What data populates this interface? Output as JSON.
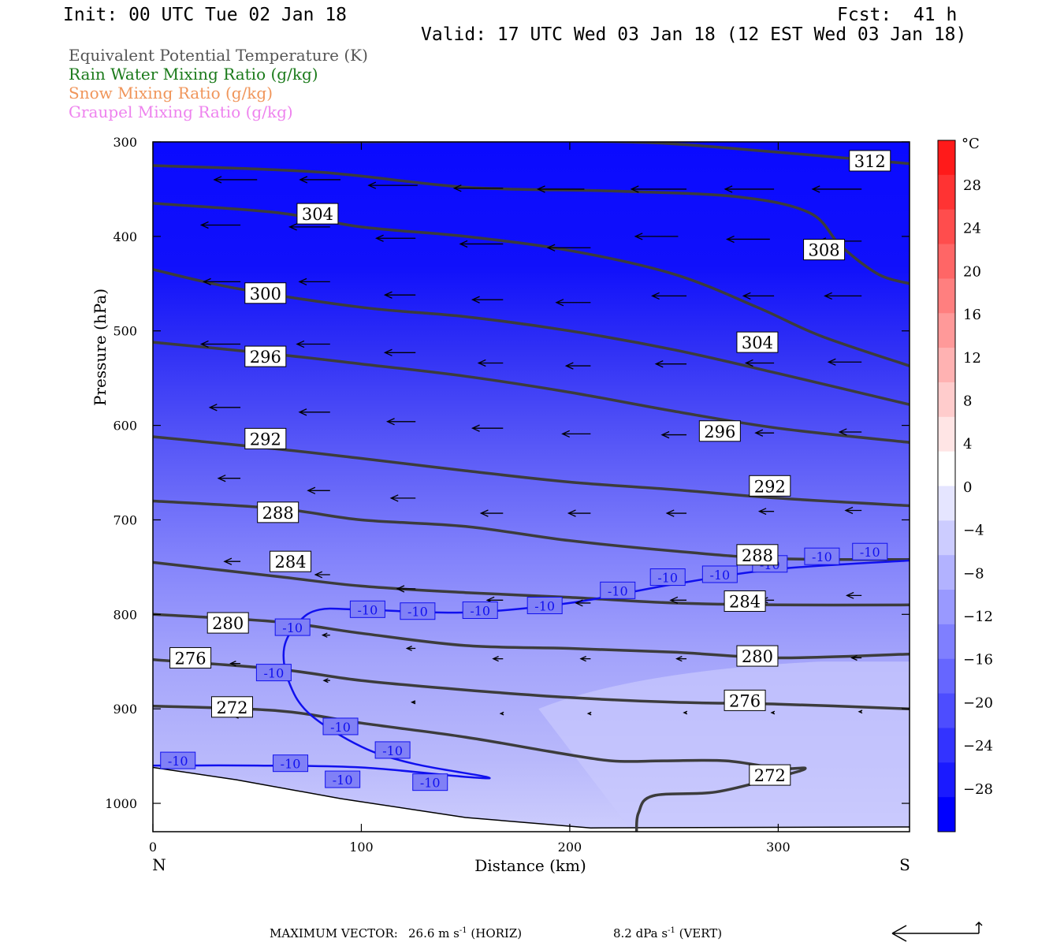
{
  "header": {
    "init": "Init: 00 UTC Tue 02 Jan 18",
    "fcst": "Fcst:  41 h",
    "valid": "Valid: 17 UTC Wed 03 Jan 18 (12 EST Wed 03 Jan 18)"
  },
  "legend": [
    {
      "text": "Equivalent Potential Temperature (K)",
      "color": "#555555"
    },
    {
      "text": "Rain Water Mixing Ratio (g/kg)",
      "color": "#1a7a1a"
    },
    {
      "text": "Snow Mixing Ratio (g/kg)",
      "color": "#f0955a"
    },
    {
      "text": "Graupel Mixing Ratio (g/kg)",
      "color": "#ee82ee"
    }
  ],
  "footer": {
    "label": "MAXIMUM VECTOR:",
    "horiz": "26.6 m s",
    "horiz_tag": "(HORIZ)",
    "vert": "8.2 dPa s",
    "vert_tag": "(VERT)",
    "unit_exp": "-1"
  },
  "chart_data": {
    "type": "contour",
    "xlabel": "Distance (km)",
    "ylabel": "Pressure (hPa)",
    "x_left_label": "N",
    "x_right_label": "S",
    "xlim": [
      0,
      363
    ],
    "ylim": [
      1030,
      300
    ],
    "x_ticks": [
      0,
      100,
      200,
      300
    ],
    "y_ticks": [
      300,
      400,
      500,
      600,
      700,
      800,
      900,
      1000
    ],
    "colorbar": {
      "unit": "°C",
      "labels": [
        28,
        24,
        20,
        16,
        12,
        8,
        4,
        0,
        -4,
        -8,
        -12,
        -16,
        -20,
        -24,
        -28
      ],
      "colors": [
        "#ff1a1a",
        "#ff3333",
        "#ff4d4d",
        "#ff6666",
        "#ff7f7f",
        "#ff9999",
        "#ffb2b2",
        "#ffcccc",
        "#ffe5e5",
        "#ffffff",
        "#e5e5ff",
        "#ccccff",
        "#b2b2ff",
        "#9999ff",
        "#7f7fff",
        "#6666ff",
        "#4d4dff",
        "#3333ff",
        "#1a1aff",
        "#0000ff"
      ]
    },
    "theta_e_contours": [
      {
        "value": 312,
        "points": [
          [
            85,
            300
          ],
          [
            175,
            299
          ],
          [
            228,
            300
          ],
          [
            268,
            305
          ],
          [
            363,
            323
          ]
        ]
      },
      {
        "value": 308,
        "points": [
          [
            0,
            325
          ],
          [
            80,
            332
          ],
          [
            150,
            348
          ],
          [
            220,
            352
          ],
          [
            280,
            358
          ],
          [
            315,
            375
          ],
          [
            330,
            410
          ],
          [
            348,
            440
          ],
          [
            363,
            450
          ]
        ]
      },
      {
        "value": 304,
        "points": [
          [
            0,
            365
          ],
          [
            60,
            375
          ],
          [
            100,
            390
          ],
          [
            150,
            400
          ],
          [
            200,
            415
          ],
          [
            250,
            440
          ],
          [
            290,
            475
          ],
          [
            320,
            505
          ],
          [
            363,
            537
          ]
        ]
      },
      {
        "value": 300,
        "points": [
          [
            0,
            435
          ],
          [
            40,
            455
          ],
          [
            100,
            475
          ],
          [
            150,
            485
          ],
          [
            200,
            500
          ],
          [
            250,
            520
          ],
          [
            300,
            545
          ],
          [
            363,
            578
          ]
        ]
      },
      {
        "value": 296,
        "points": [
          [
            0,
            512
          ],
          [
            60,
            525
          ],
          [
            100,
            535
          ],
          [
            150,
            548
          ],
          [
            200,
            565
          ],
          [
            250,
            585
          ],
          [
            300,
            603
          ],
          [
            363,
            618
          ]
        ]
      },
      {
        "value": 292,
        "points": [
          [
            0,
            612
          ],
          [
            60,
            625
          ],
          [
            100,
            635
          ],
          [
            150,
            648
          ],
          [
            200,
            660
          ],
          [
            250,
            668
          ],
          [
            300,
            677
          ],
          [
            363,
            685
          ]
        ]
      },
      {
        "value": 288,
        "points": [
          [
            0,
            680
          ],
          [
            60,
            688
          ],
          [
            100,
            700
          ],
          [
            150,
            707
          ],
          [
            200,
            722
          ],
          [
            250,
            733
          ],
          [
            300,
            741
          ],
          [
            363,
            742
          ]
        ]
      },
      {
        "value": 284,
        "points": [
          [
            0,
            745
          ],
          [
            60,
            760
          ],
          [
            100,
            770
          ],
          [
            150,
            777
          ],
          [
            200,
            782
          ],
          [
            250,
            788
          ],
          [
            300,
            790
          ],
          [
            363,
            790
          ]
        ]
      },
      {
        "value": 280,
        "points": [
          [
            0,
            800
          ],
          [
            60,
            808
          ],
          [
            100,
            820
          ],
          [
            150,
            833
          ],
          [
            200,
            836
          ],
          [
            250,
            840
          ],
          [
            300,
            846
          ],
          [
            363,
            842
          ]
        ]
      },
      {
        "value": 276,
        "points": [
          [
            0,
            848
          ],
          [
            60,
            858
          ],
          [
            100,
            870
          ],
          [
            150,
            880
          ],
          [
            200,
            888
          ],
          [
            250,
            893
          ],
          [
            300,
            895
          ],
          [
            363,
            900
          ]
        ]
      },
      {
        "value": 272,
        "points": [
          [
            0,
            897
          ],
          [
            60,
            902
          ],
          [
            100,
            915
          ],
          [
            150,
            930
          ],
          [
            190,
            945
          ],
          [
            220,
            955
          ],
          [
            245,
            955
          ],
          [
            275,
            955
          ],
          [
            300,
            963
          ],
          [
            313,
            963
          ],
          [
            300,
            972
          ],
          [
            270,
            988
          ],
          [
            240,
            992
          ],
          [
            233,
            1010
          ],
          [
            232,
            1030
          ]
        ]
      }
    ],
    "temp_minus10_contour": [
      [
        0,
        960
      ],
      [
        50,
        960
      ],
      [
        100,
        962
      ],
      [
        150,
        972
      ],
      [
        160,
        972
      ],
      [
        125,
        958
      ],
      [
        100,
        940
      ],
      [
        75,
        905
      ],
      [
        65,
        870
      ],
      [
        63,
        835
      ],
      [
        70,
        808
      ],
      [
        80,
        795
      ],
      [
        100,
        795
      ],
      [
        150,
        798
      ],
      [
        200,
        788
      ],
      [
        250,
        768
      ],
      [
        300,
        752
      ],
      [
        363,
        743
      ]
    ],
    "theta_e_labels": [
      {
        "value": 312,
        "x": 344,
        "p": 320
      },
      {
        "value": 304,
        "x": 79,
        "p": 376
      },
      {
        "value": 308,
        "x": 322,
        "p": 414
      },
      {
        "value": 300,
        "x": 54,
        "p": 460
      },
      {
        "value": 304,
        "x": 290,
        "p": 512
      },
      {
        "value": 296,
        "x": 54,
        "p": 527
      },
      {
        "value": 296,
        "x": 272,
        "p": 606
      },
      {
        "value": 292,
        "x": 54,
        "p": 614
      },
      {
        "value": 292,
        "x": 296,
        "p": 664
      },
      {
        "value": 288,
        "x": 60,
        "p": 692
      },
      {
        "value": 288,
        "x": 290,
        "p": 737
      },
      {
        "value": 284,
        "x": 66,
        "p": 744
      },
      {
        "value": 284,
        "x": 284,
        "p": 786
      },
      {
        "value": 280,
        "x": 36,
        "p": 809
      },
      {
        "value": 276,
        "x": 18,
        "p": 846
      },
      {
        "value": 280,
        "x": 290,
        "p": 844
      },
      {
        "value": 276,
        "x": 284,
        "p": 891
      },
      {
        "value": 272,
        "x": 38,
        "p": 898
      },
      {
        "value": 272,
        "x": 296,
        "p": 970
      }
    ],
    "minus10_labels": [
      {
        "value": "-10",
        "x": 12,
        "p": 955
      },
      {
        "value": "-10",
        "x": 67,
        "p": 814
      },
      {
        "value": "-10",
        "x": 58,
        "p": 862
      },
      {
        "value": "-10",
        "x": 103,
        "p": 795
      },
      {
        "value": "-10",
        "x": 127,
        "p": 797
      },
      {
        "value": "-10",
        "x": 157,
        "p": 796
      },
      {
        "value": "-10",
        "x": 188,
        "p": 791
      },
      {
        "value": "-10",
        "x": 223,
        "p": 775
      },
      {
        "value": "-10",
        "x": 247,
        "p": 761
      },
      {
        "value": "-10",
        "x": 272,
        "p": 758
      },
      {
        "value": "-10",
        "x": 296,
        "p": 747
      },
      {
        "value": "-10",
        "x": 321,
        "p": 739
      },
      {
        "value": "-10",
        "x": 344,
        "p": 734
      },
      {
        "value": "-10",
        "x": 90,
        "p": 919
      },
      {
        "value": "-10",
        "x": 115,
        "p": 944
      },
      {
        "value": "-10",
        "x": 66,
        "p": 958
      },
      {
        "value": "-10",
        "x": 91,
        "p": 975
      },
      {
        "value": "-10",
        "x": 133,
        "p": 978
      }
    ],
    "wind_vectors": [
      {
        "x": 50,
        "p": 340,
        "u": -35,
        "w": 0
      },
      {
        "x": 90,
        "p": 340,
        "u": -33,
        "w": 0
      },
      {
        "x": 127,
        "p": 346,
        "u": -40,
        "w": 0
      },
      {
        "x": 168,
        "p": 349,
        "u": -40,
        "w": 0
      },
      {
        "x": 207,
        "p": 350,
        "u": -38,
        "w": 0
      },
      {
        "x": 256,
        "p": 350,
        "u": -45,
        "w": 0
      },
      {
        "x": 298,
        "p": 350,
        "u": -40,
        "w": 0
      },
      {
        "x": 340,
        "p": 350,
        "u": -40,
        "w": 0
      },
      {
        "x": 42,
        "p": 388,
        "u": -32,
        "w": 0
      },
      {
        "x": 85,
        "p": 390,
        "u": -33,
        "w": 0
      },
      {
        "x": 126,
        "p": 402,
        "u": -32,
        "w": 0
      },
      {
        "x": 168,
        "p": 408,
        "u": -35,
        "w": 0
      },
      {
        "x": 210,
        "p": 412,
        "u": -35,
        "w": 0
      },
      {
        "x": 252,
        "p": 400,
        "u": -35,
        "w": 0
      },
      {
        "x": 296,
        "p": 403,
        "u": -35,
        "w": 0
      },
      {
        "x": 340,
        "p": 405,
        "u": -35,
        "w": 0
      },
      {
        "x": 42,
        "p": 448,
        "u": -30,
        "w": 0
      },
      {
        "x": 85,
        "p": 448,
        "u": -25,
        "w": 0
      },
      {
        "x": 126,
        "p": 462,
        "u": -25,
        "w": 0
      },
      {
        "x": 168,
        "p": 467,
        "u": -25,
        "w": 0
      },
      {
        "x": 210,
        "p": 470,
        "u": -28,
        "w": 0
      },
      {
        "x": 256,
        "p": 463,
        "u": -28,
        "w": 0
      },
      {
        "x": 298,
        "p": 463,
        "u": -25,
        "w": 0
      },
      {
        "x": 340,
        "p": 463,
        "u": -30,
        "w": 0
      },
      {
        "x": 42,
        "p": 514,
        "u": -32,
        "w": 0
      },
      {
        "x": 85,
        "p": 514,
        "u": -27,
        "w": 0
      },
      {
        "x": 126,
        "p": 523,
        "u": -25,
        "w": 0
      },
      {
        "x": 168,
        "p": 534,
        "u": -20,
        "w": 0
      },
      {
        "x": 210,
        "p": 537,
        "u": -20,
        "w": 0
      },
      {
        "x": 256,
        "p": 535,
        "u": -25,
        "w": 0
      },
      {
        "x": 298,
        "p": 534,
        "u": -23,
        "w": 0
      },
      {
        "x": 340,
        "p": 533,
        "u": -27,
        "w": 0
      },
      {
        "x": 42,
        "p": 581,
        "u": -25,
        "w": 0
      },
      {
        "x": 85,
        "p": 586,
        "u": -25,
        "w": 0
      },
      {
        "x": 126,
        "p": 596,
        "u": -23,
        "w": 0
      },
      {
        "x": 168,
        "p": 603,
        "u": -25,
        "w": 0
      },
      {
        "x": 210,
        "p": 609,
        "u": -23,
        "w": 0
      },
      {
        "x": 256,
        "p": 610,
        "u": -20,
        "w": 0
      },
      {
        "x": 298,
        "p": 608,
        "u": -15,
        "w": 0
      },
      {
        "x": 340,
        "p": 607,
        "u": -18,
        "w": 0
      },
      {
        "x": 42,
        "p": 656,
        "u": -18,
        "w": 0
      },
      {
        "x": 85,
        "p": 669,
        "u": -18,
        "w": 0
      },
      {
        "x": 126,
        "p": 677,
        "u": -20,
        "w": 0
      },
      {
        "x": 168,
        "p": 693,
        "u": -18,
        "w": 0
      },
      {
        "x": 210,
        "p": 693,
        "u": -18,
        "w": 0
      },
      {
        "x": 256,
        "p": 693,
        "u": -16,
        "w": 0
      },
      {
        "x": 298,
        "p": 691,
        "u": -12,
        "w": 0
      },
      {
        "x": 340,
        "p": 690,
        "u": -13,
        "w": 0
      },
      {
        "x": 42,
        "p": 744,
        "u": -13,
        "w": 0
      },
      {
        "x": 85,
        "p": 758,
        "u": -12,
        "w": 0
      },
      {
        "x": 126,
        "p": 773,
        "u": -15,
        "w": 0
      },
      {
        "x": 168,
        "p": 785,
        "u": -13,
        "w": 0
      },
      {
        "x": 210,
        "p": 788,
        "u": -12,
        "w": 0
      },
      {
        "x": 256,
        "p": 785,
        "u": -13,
        "w": 0
      },
      {
        "x": 298,
        "p": 785,
        "u": -10,
        "w": 0
      },
      {
        "x": 340,
        "p": 780,
        "u": -12,
        "w": 0
      },
      {
        "x": 42,
        "p": 852,
        "u": -8,
        "w": 0
      },
      {
        "x": 85,
        "p": 822,
        "u": -6,
        "w": 0
      },
      {
        "x": 126,
        "p": 836,
        "u": -7,
        "w": 0
      },
      {
        "x": 168,
        "p": 847,
        "u": -8,
        "w": 0
      },
      {
        "x": 210,
        "p": 847,
        "u": -8,
        "w": 0
      },
      {
        "x": 256,
        "p": 847,
        "u": -8,
        "w": 0
      },
      {
        "x": 298,
        "p": 848,
        "u": -7,
        "w": 0
      },
      {
        "x": 340,
        "p": 846,
        "u": -8,
        "w": 0
      },
      {
        "x": 42,
        "p": 908,
        "u": -5,
        "w": 0
      },
      {
        "x": 85,
        "p": 870,
        "u": -5,
        "w": 0
      },
      {
        "x": 126,
        "p": 893,
        "u": -3,
        "w": 0
      },
      {
        "x": 168,
        "p": 905,
        "u": -2,
        "w": 0
      },
      {
        "x": 210,
        "p": 905,
        "u": -2,
        "w": 0
      },
      {
        "x": 256,
        "p": 904,
        "u": -2,
        "w": 0
      },
      {
        "x": 298,
        "p": 904,
        "u": -2,
        "w": 0
      },
      {
        "x": 340,
        "p": 903,
        "u": -2,
        "w": 0
      }
    ]
  }
}
